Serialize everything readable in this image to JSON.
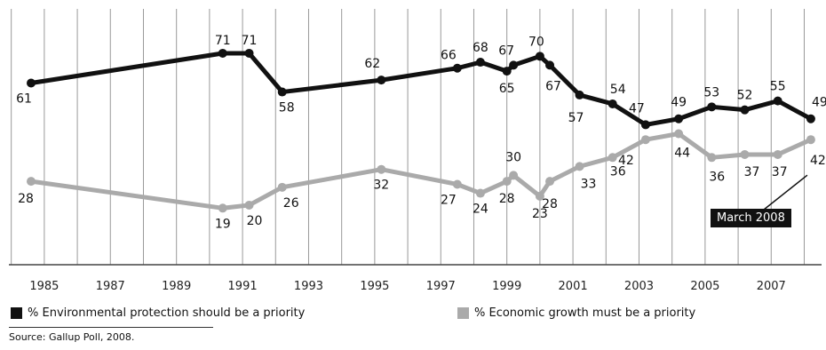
{
  "chart_data": {
    "type": "line",
    "x_ticks": [
      "1985",
      "1987",
      "1989",
      "1991",
      "1993",
      "1995",
      "1997",
      "1999",
      "2001",
      "2003",
      "2005",
      "2007"
    ],
    "series": [
      {
        "name": "% Environmental protection should be a priority",
        "color": "#111111",
        "points": [
          {
            "x": 1984.6,
            "y": 61,
            "label": "61"
          },
          {
            "x": 1990.4,
            "y": 71,
            "label": "71"
          },
          {
            "x": 1991.2,
            "y": 71,
            "label": "71"
          },
          {
            "x": 1992.2,
            "y": 58,
            "label": "58"
          },
          {
            "x": 1995.2,
            "y": 62,
            "label": "62"
          },
          {
            "x": 1997.5,
            "y": 66,
            "label": "66"
          },
          {
            "x": 1998.2,
            "y": 68,
            "label": "68"
          },
          {
            "x": 1999.0,
            "y": 65,
            "label": "65"
          },
          {
            "x": 1999.2,
            "y": 67,
            "label": "67"
          },
          {
            "x": 2000.0,
            "y": 70,
            "label": "70"
          },
          {
            "x": 2000.3,
            "y": 67,
            "label": "67"
          },
          {
            "x": 2001.2,
            "y": 57,
            "label": "57"
          },
          {
            "x": 2002.2,
            "y": 54,
            "label": "54"
          },
          {
            "x": 2003.2,
            "y": 47,
            "label": "47"
          },
          {
            "x": 2004.2,
            "y": 49,
            "label": "49"
          },
          {
            "x": 2005.2,
            "y": 53,
            "label": "53"
          },
          {
            "x": 2006.2,
            "y": 52,
            "label": "52"
          },
          {
            "x": 2007.2,
            "y": 55,
            "label": "55"
          },
          {
            "x": 2008.2,
            "y": 49,
            "label": "49"
          }
        ]
      },
      {
        "name": "% Economic growth must be a priority",
        "color": "#aaaaaa",
        "points": [
          {
            "x": 1984.6,
            "y": 28,
            "label": "28"
          },
          {
            "x": 1990.4,
            "y": 19,
            "label": "19"
          },
          {
            "x": 1991.2,
            "y": 20,
            "label": "20"
          },
          {
            "x": 1992.2,
            "y": 26,
            "label": "26"
          },
          {
            "x": 1995.2,
            "y": 32,
            "label": "32"
          },
          {
            "x": 1997.5,
            "y": 27,
            "label": "27"
          },
          {
            "x": 1998.2,
            "y": 24,
            "label": "24"
          },
          {
            "x": 1999.0,
            "y": 28,
            "label": "28"
          },
          {
            "x": 1999.2,
            "y": 30,
            "label": "30"
          },
          {
            "x": 2000.0,
            "y": 23,
            "label": "23"
          },
          {
            "x": 2000.3,
            "y": 28,
            "label": "28"
          },
          {
            "x": 2001.2,
            "y": 33,
            "label": "33"
          },
          {
            "x": 2002.2,
            "y": 36,
            "label": "36"
          },
          {
            "x": 2003.2,
            "y": 42,
            "label": "42"
          },
          {
            "x": 2004.2,
            "y": 44,
            "label": "44"
          },
          {
            "x": 2005.2,
            "y": 36,
            "label": "36"
          },
          {
            "x": 2006.2,
            "y": 37,
            "label": "37"
          },
          {
            "x": 2007.2,
            "y": 37,
            "label": "37"
          },
          {
            "x": 2008.2,
            "y": 42,
            "label": "42"
          }
        ]
      }
    ],
    "xlim": [
      1984,
      2009
    ],
    "ylim": [
      0,
      80
    ],
    "grid": "vertical",
    "legend": "bottom",
    "annotation": "March 2008"
  },
  "legend": {
    "env": "% Environmental protection should be a priority",
    "econ": "% Economic growth must be a priority"
  },
  "source": "Source: Gallup Poll, 2008.",
  "note": "March 2008"
}
